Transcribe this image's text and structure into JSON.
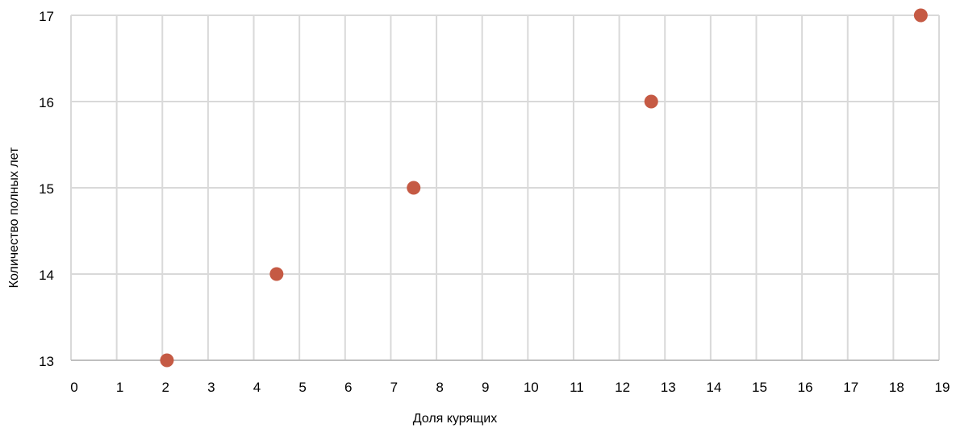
{
  "chart_data": {
    "type": "scatter",
    "title": "",
    "xlabel": "Доля курящих",
    "ylabel": "Количество полных лет",
    "xlim": [
      0,
      19
    ],
    "ylim": [
      13,
      17
    ],
    "x_ticks": [
      0,
      1,
      2,
      3,
      4,
      5,
      6,
      7,
      8,
      9,
      10,
      11,
      12,
      13,
      14,
      15,
      16,
      17,
      18,
      19
    ],
    "y_ticks": [
      13,
      14,
      15,
      16,
      17
    ],
    "grid": true,
    "legend": "none",
    "series": [
      {
        "color": "#c55a44",
        "points": [
          {
            "x": 2.1,
            "y": 13
          },
          {
            "x": 4.5,
            "y": 14
          },
          {
            "x": 7.5,
            "y": 15
          },
          {
            "x": 12.7,
            "y": 16
          },
          {
            "x": 18.6,
            "y": 17
          }
        ]
      }
    ],
    "colors": {
      "grid": "#d9d9d9",
      "axis": "#bfbfbf",
      "marker": "#c55a44"
    }
  }
}
